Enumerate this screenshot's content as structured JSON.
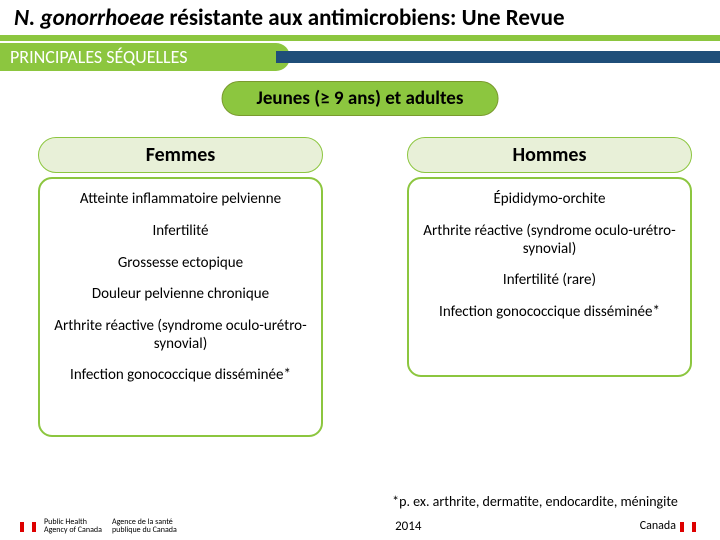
{
  "colors": {
    "green": "#8cc63f"
  },
  "title": {
    "italic": "N. gonorrhoeae",
    "rest": " résistante aux antimicrobiens: Une Revue"
  },
  "subtitle": "PRINCIPALES SÉQUELLES",
  "topPill": "Jeunes (≥ 9 ans) et adultes",
  "columns": {
    "left": {
      "header": "Femmes",
      "items": [
        "Atteinte inflammatoire pelvienne",
        "Infertilité",
        "Grossesse ectopique",
        "Douleur pelvienne chronique",
        "Arthrite réactive (syndrome oculo-urétro-synovial)",
        "Infection gonococcique disséminée*"
      ],
      "panel_min_height": 260
    },
    "right": {
      "header": "Hommes",
      "items": [
        "Épididymo-orchite",
        "Arthrite réactive (syndrome oculo-urétro-synovial)",
        "Infertilité (rare)",
        "Infection gonococcique disséminée*"
      ],
      "panel_min_height": 200
    }
  },
  "footnote": "*p. ex. arthrite, dermatite, endocardite, méningite",
  "footer": {
    "year": "2014",
    "left1": "Public Health",
    "left2": "Agency of Canada",
    "left3": "Agence de la santé",
    "left4": "publique du Canada",
    "right": "Canada"
  }
}
